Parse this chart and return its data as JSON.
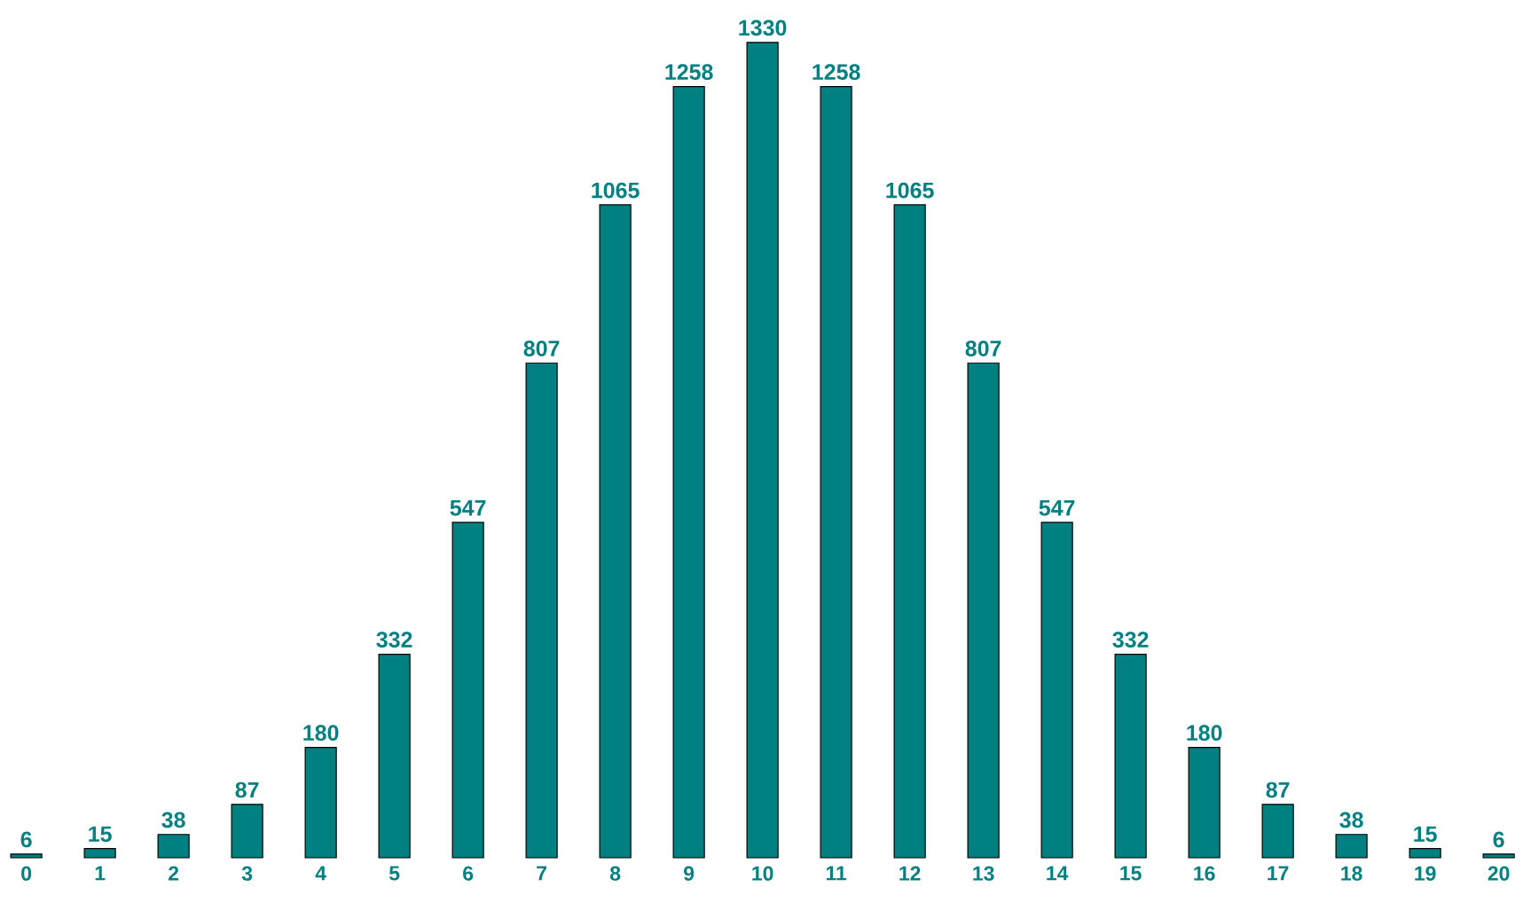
{
  "chart_data": {
    "type": "bar",
    "categories": [
      "0",
      "1",
      "2",
      "3",
      "4",
      "5",
      "6",
      "7",
      "8",
      "9",
      "10",
      "11",
      "12",
      "13",
      "14",
      "15",
      "16",
      "17",
      "18",
      "19",
      "20"
    ],
    "values": [
      6,
      15,
      38,
      87,
      180,
      332,
      547,
      807,
      1065,
      1258,
      1330,
      1258,
      1065,
      807,
      547,
      332,
      180,
      87,
      38,
      15,
      6
    ],
    "color": "#008080",
    "data_labels": true
  }
}
